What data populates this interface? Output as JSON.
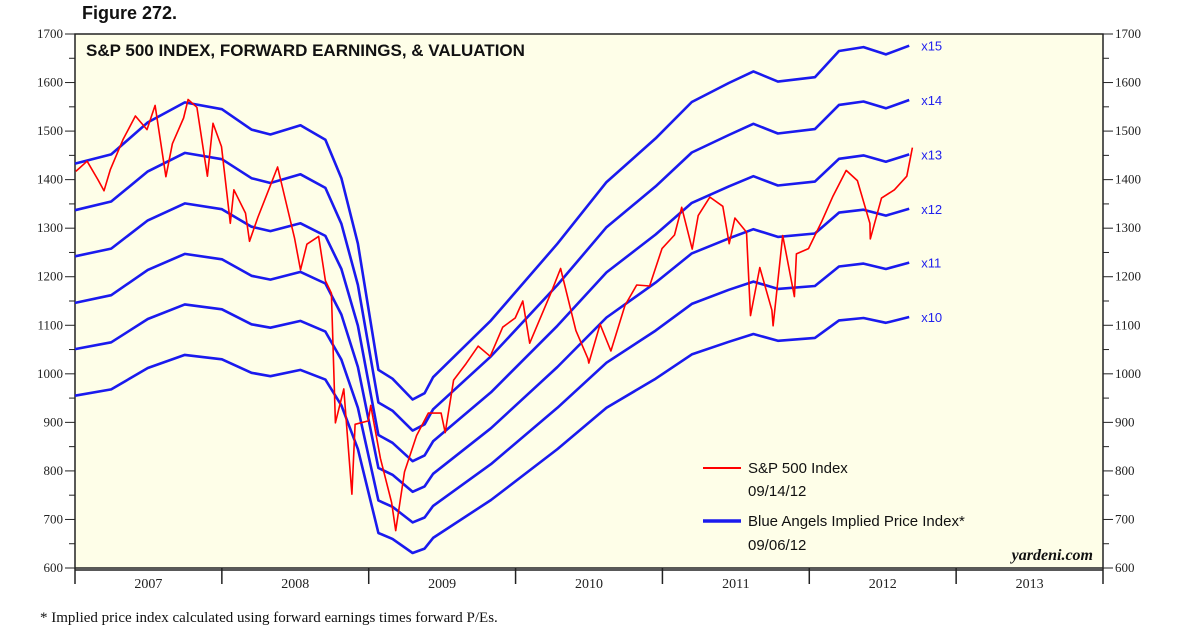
{
  "figure_label": "Figure 272.",
  "footnote": "*  Implied price index calculated using forward earnings times forward P/Es.",
  "credit": "yardeni.com",
  "colors": {
    "background": "#fefee8",
    "sp500": "#ff0000",
    "implied": "#1a1aee"
  },
  "chart_data": {
    "type": "line",
    "title": "S&P 500 INDEX, FORWARD EARNINGS, & VALUATION",
    "xlabel": "",
    "ylabel": "",
    "ylim": [
      600,
      1700
    ],
    "xlim": [
      "2007-01-01",
      "2014-01-01"
    ],
    "y_ticks": [
      "600",
      "700",
      "800",
      "900",
      "1000",
      "1100",
      "1200",
      "1300",
      "1400",
      "1500",
      "1600",
      "1700"
    ],
    "x_ticks": [
      "2007",
      "2008",
      "2009",
      "2010",
      "2011",
      "2012",
      "2013"
    ],
    "grid": false,
    "legend": {
      "placement": "bottom-right",
      "entries": [
        {
          "label": "S&P 500 Index",
          "date": "09/14/12",
          "color": "#ff0000"
        },
        {
          "label": "Blue Angels Implied Price Index*",
          "date": "09/06/12",
          "color": "#1a1aee"
        }
      ]
    },
    "implied_dates": [
      "2007-01-01",
      "2007-04-01",
      "2007-07-01",
      "2007-10-01",
      "2008-01-01",
      "2008-03-15",
      "2008-05-01",
      "2008-07-15",
      "2008-09-15",
      "2008-10-25",
      "2008-12-05",
      "2009-01-25",
      "2009-03-01",
      "2009-04-20",
      "2009-05-20",
      "2009-06-10",
      "2009-11-01",
      "2010-04-15",
      "2010-08-15",
      "2010-12-15",
      "2011-03-15",
      "2011-06-15",
      "2011-08-15",
      "2011-10-15",
      "2012-01-15",
      "2012-03-15",
      "2012-05-15",
      "2012-07-10",
      "2012-09-06"
    ],
    "series": [
      {
        "name": "x10",
        "values": [
          955,
          968,
          1012,
          1039,
          1030,
          1002,
          995,
          1008,
          988,
          935,
          845,
          672,
          660,
          631,
          640,
          662,
          740,
          845,
          930,
          990,
          1040,
          1066,
          1082,
          1068,
          1074,
          1110,
          1115,
          1105,
          1117
        ]
      },
      {
        "name": "x11",
        "values": [
          1051,
          1065,
          1113,
          1143,
          1133,
          1102,
          1095,
          1109,
          1087,
          1029,
          930,
          739,
          726,
          694,
          704,
          728,
          814,
          930,
          1023,
          1089,
          1144,
          1173,
          1190,
          1175,
          1181,
          1221,
          1227,
          1216,
          1229
        ]
      },
      {
        "name": "x12",
        "values": [
          1146,
          1162,
          1214,
          1247,
          1236,
          1202,
          1194,
          1210,
          1186,
          1122,
          1014,
          806,
          792,
          757,
          768,
          794,
          888,
          1014,
          1116,
          1188,
          1248,
          1279,
          1298,
          1282,
          1289,
          1332,
          1338,
          1326,
          1340
        ]
      },
      {
        "name": "x13",
        "values": [
          1242,
          1258,
          1316,
          1351,
          1339,
          1303,
          1294,
          1310,
          1284,
          1216,
          1099,
          874,
          858,
          820,
          832,
          861,
          962,
          1099,
          1209,
          1287,
          1352,
          1386,
          1407,
          1388,
          1396,
          1443,
          1450,
          1437,
          1452
        ]
      },
      {
        "name": "x14",
        "values": [
          1337,
          1355,
          1417,
          1455,
          1442,
          1403,
          1393,
          1411,
          1383,
          1309,
          1183,
          941,
          924,
          883,
          896,
          927,
          1036,
          1183,
          1302,
          1386,
          1456,
          1492,
          1515,
          1495,
          1504,
          1554,
          1561,
          1547,
          1564
        ]
      },
      {
        "name": "x15",
        "values": [
          1433,
          1452,
          1518,
          1559,
          1545,
          1503,
          1493,
          1512,
          1482,
          1403,
          1268,
          1008,
          990,
          947,
          960,
          993,
          1110,
          1268,
          1395,
          1485,
          1560,
          1599,
          1623,
          1602,
          1611,
          1665,
          1673,
          1658,
          1676
        ]
      }
    ],
    "sp500": {
      "dates": [
        "2007-01-03",
        "2007-01-31",
        "2007-02-27",
        "2007-03-14",
        "2007-03-30",
        "2007-04-30",
        "2007-05-31",
        "2007-06-29",
        "2007-07-19",
        "2007-08-15",
        "2007-08-31",
        "2007-09-28",
        "2007-10-09",
        "2007-10-31",
        "2007-11-26",
        "2007-12-10",
        "2007-12-31",
        "2008-01-22",
        "2008-01-31",
        "2008-02-29",
        "2008-03-10",
        "2008-03-31",
        "2008-04-30",
        "2008-05-19",
        "2008-06-30",
        "2008-07-15",
        "2008-07-31",
        "2008-08-29",
        "2008-09-15",
        "2008-09-30",
        "2008-10-10",
        "2008-10-31",
        "2008-11-20",
        "2008-11-28",
        "2008-12-31",
        "2009-01-06",
        "2009-01-30",
        "2009-02-27",
        "2009-03-09",
        "2009-03-31",
        "2009-04-30",
        "2009-05-29",
        "2009-06-30",
        "2009-07-10",
        "2009-07-31",
        "2009-08-31",
        "2009-09-30",
        "2009-10-30",
        "2009-11-30",
        "2009-12-31",
        "2010-01-19",
        "2010-02-05",
        "2010-02-26",
        "2010-03-31",
        "2010-04-23",
        "2010-05-31",
        "2010-06-30",
        "2010-07-02",
        "2010-07-30",
        "2010-08-26",
        "2010-09-30",
        "2010-10-29",
        "2010-11-30",
        "2010-12-31",
        "2011-01-31",
        "2011-02-18",
        "2011-03-16",
        "2011-03-31",
        "2011-04-29",
        "2011-05-31",
        "2011-06-16",
        "2011-06-30",
        "2011-07-29",
        "2011-08-08",
        "2011-08-31",
        "2011-09-30",
        "2011-10-03",
        "2011-10-27",
        "2011-11-25",
        "2011-11-30",
        "2011-12-30",
        "2012-01-31",
        "2012-02-29",
        "2012-04-02",
        "2012-04-30",
        "2012-05-31",
        "2012-06-01",
        "2012-06-29",
        "2012-07-31",
        "2012-08-31",
        "2012-09-14"
      ],
      "values": [
        1417,
        1438,
        1400,
        1377,
        1421,
        1482,
        1531,
        1503,
        1553,
        1406,
        1474,
        1527,
        1565,
        1549,
        1407,
        1516,
        1468,
        1310,
        1379,
        1331,
        1273,
        1323,
        1386,
        1426,
        1280,
        1214,
        1267,
        1283,
        1192,
        1166,
        899,
        969,
        752,
        896,
        903,
        935,
        826,
        735,
        677,
        798,
        873,
        919,
        919,
        879,
        987,
        1021,
        1057,
        1036,
        1096,
        1115,
        1150,
        1063,
        1104,
        1169,
        1217,
        1089,
        1031,
        1022,
        1102,
        1047,
        1141,
        1183,
        1181,
        1258,
        1286,
        1343,
        1257,
        1326,
        1364,
        1345,
        1268,
        1321,
        1292,
        1120,
        1219,
        1131,
        1099,
        1285,
        1159,
        1247,
        1258,
        1312,
        1366,
        1419,
        1398,
        1310,
        1278,
        1362,
        1379,
        1407,
        1466
      ]
    }
  }
}
